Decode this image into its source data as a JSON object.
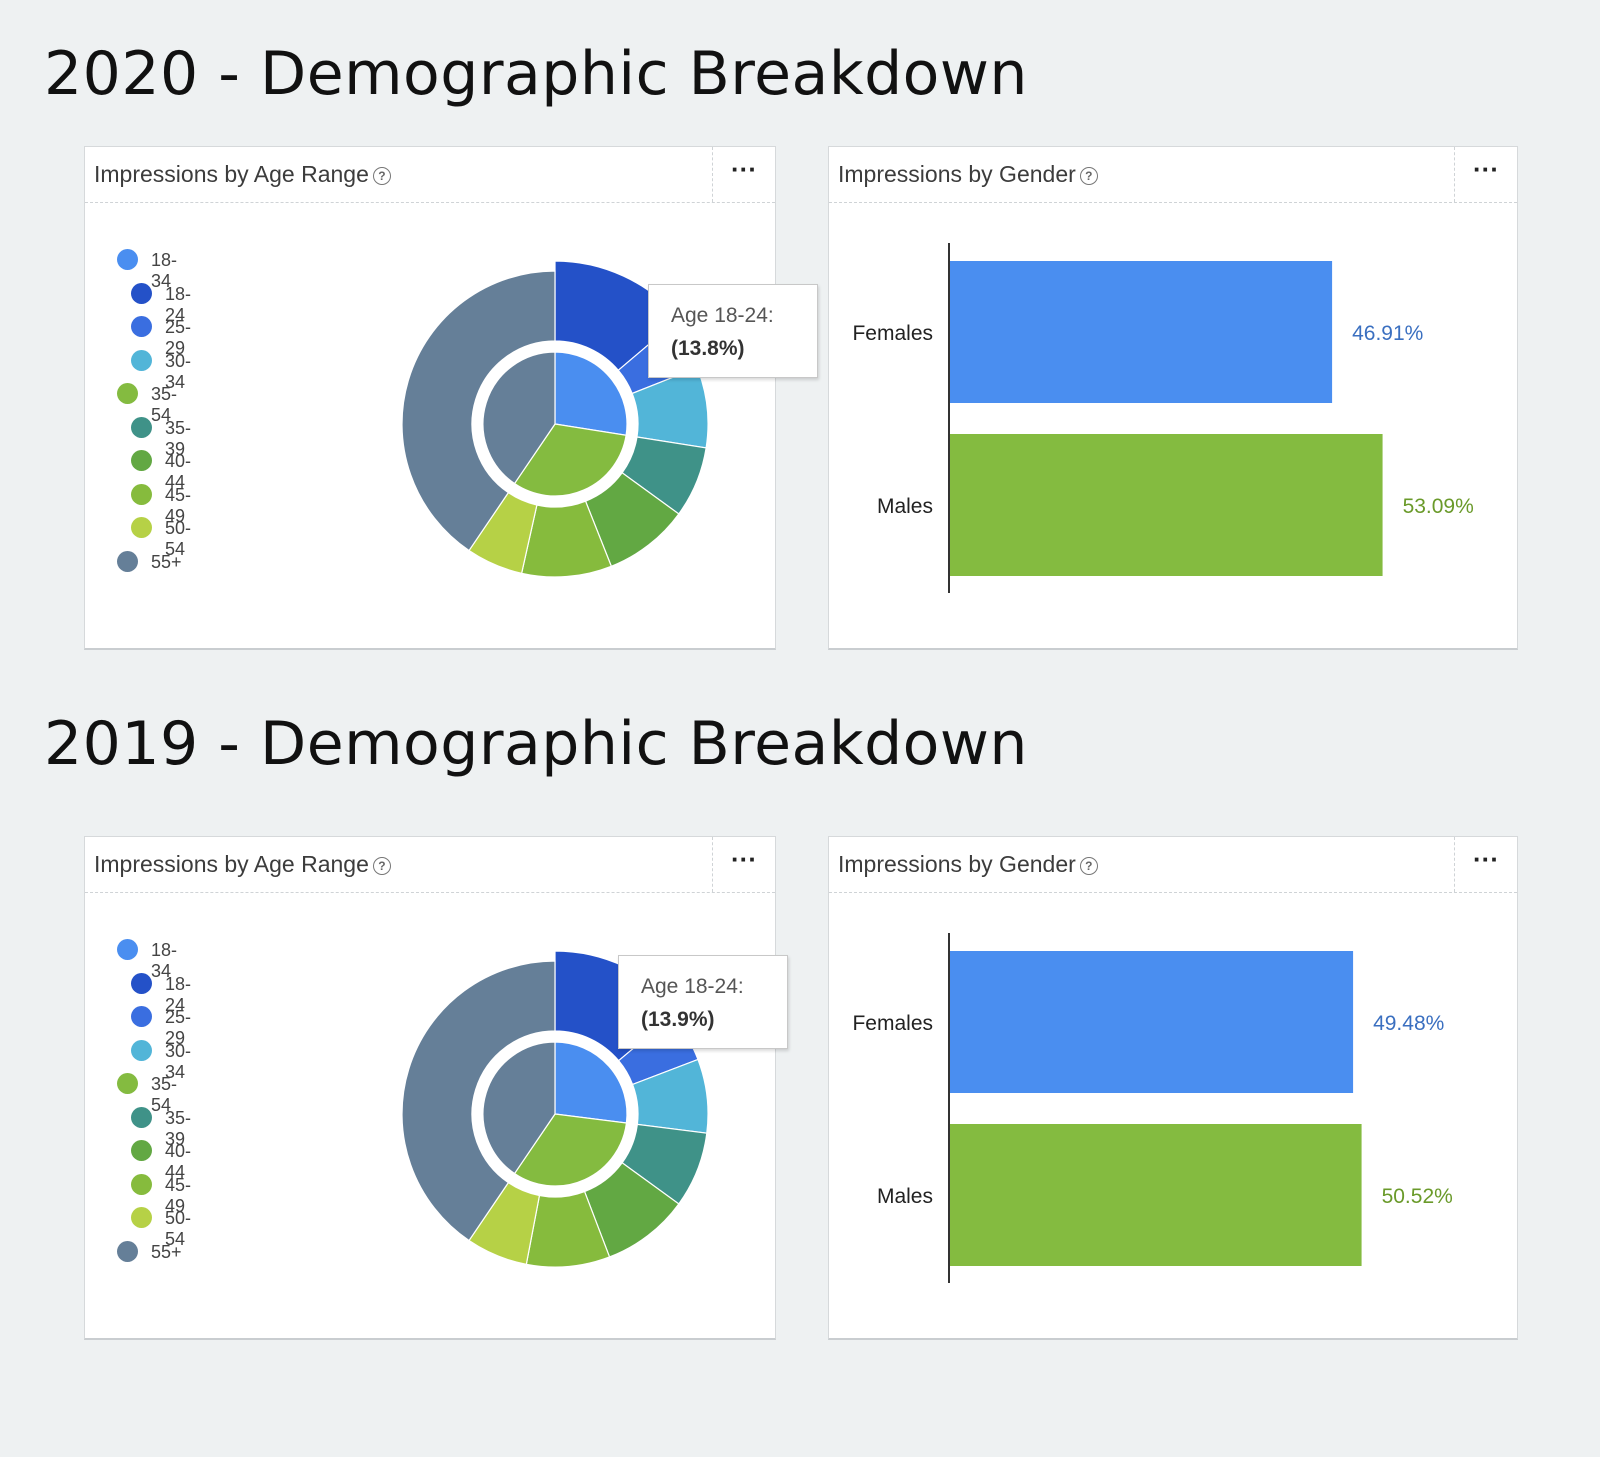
{
  "sections": [
    {
      "title": "2020 - Demographic Breakdown",
      "age_card": {
        "title": "Impressions by Age Range",
        "help_icon": "?",
        "menu_label": "···",
        "tooltip": {
          "label": "Age 18-24:",
          "value": "(13.8%)"
        }
      },
      "gender_card": {
        "title": "Impressions by Gender",
        "help_icon": "?",
        "menu_label": "···"
      }
    },
    {
      "title": "2019 - Demographic Breakdown",
      "age_card": {
        "title": "Impressions by Age Range",
        "help_icon": "?",
        "menu_label": "···",
        "tooltip": {
          "label": "Age 18-24:",
          "value": "(13.9%)"
        }
      },
      "gender_card": {
        "title": "Impressions by Gender",
        "help_icon": "?",
        "menu_label": "···"
      }
    }
  ],
  "legend": [
    {
      "label": "18-34",
      "level": "parent",
      "color": "#4a8ef0"
    },
    {
      "label": "18-24",
      "level": "child",
      "color": "#2451c8"
    },
    {
      "label": "25-29",
      "level": "child",
      "color": "#3a6ee0"
    },
    {
      "label": "30-34",
      "level": "child",
      "color": "#52b5d8"
    },
    {
      "label": "35-54",
      "level": "parent",
      "color": "#84bb40"
    },
    {
      "label": "35-39",
      "level": "child",
      "color": "#3f9288"
    },
    {
      "label": "40-44",
      "level": "child",
      "color": "#62a843"
    },
    {
      "label": "45-49",
      "level": "child",
      "color": "#86bb3d"
    },
    {
      "label": "50-54",
      "level": "child",
      "color": "#b6d146"
    },
    {
      "label": "55+",
      "level": "parent",
      "color": "#657f98"
    }
  ],
  "chart_data": [
    {
      "type": "pie",
      "title": "Impressions by Age Range",
      "variant": "sunburst",
      "inner": [
        {
          "name": "18-34",
          "value": 27.5,
          "color": "#4a8ef0"
        },
        {
          "name": "35-54",
          "value": 32.0,
          "color": "#84bb40"
        },
        {
          "name": "55+",
          "value": 40.5,
          "color": "#657f98"
        }
      ],
      "outer": [
        {
          "name": "18-24",
          "value": 13.8,
          "color": "#2451c8"
        },
        {
          "name": "25-29",
          "value": 5.2,
          "color": "#3a6ee0"
        },
        {
          "name": "30-34",
          "value": 8.5,
          "color": "#52b5d8"
        },
        {
          "name": "35-39",
          "value": 7.5,
          "color": "#3f9288"
        },
        {
          "name": "40-44",
          "value": 9.0,
          "color": "#62a843"
        },
        {
          "name": "45-49",
          "value": 9.5,
          "color": "#86bb3d"
        },
        {
          "name": "50-54",
          "value": 6.0,
          "color": "#b6d146"
        },
        {
          "name": "55+",
          "value": 40.5,
          "color": "#657f98"
        }
      ]
    },
    {
      "type": "bar",
      "orientation": "horizontal",
      "title": "Impressions by Gender",
      "categories": [
        "Females",
        "Males"
      ],
      "values": [
        46.91,
        53.09
      ],
      "value_labels": [
        "46.91%",
        "53.09%"
      ],
      "colors": [
        "#4a8ef0",
        "#84bb40"
      ],
      "label_colors": [
        "#3a6fc0",
        "#6a9a2a"
      ]
    },
    {
      "type": "pie",
      "title": "Impressions by Age Range",
      "variant": "sunburst",
      "inner": [
        {
          "name": "18-34",
          "value": 27.0,
          "color": "#4a8ef0"
        },
        {
          "name": "35-54",
          "value": 32.5,
          "color": "#84bb40"
        },
        {
          "name": "55+",
          "value": 40.5,
          "color": "#657f98"
        }
      ],
      "outer": [
        {
          "name": "18-24",
          "value": 13.9,
          "color": "#2451c8"
        },
        {
          "name": "25-29",
          "value": 5.3,
          "color": "#3a6ee0"
        },
        {
          "name": "30-34",
          "value": 7.8,
          "color": "#52b5d8"
        },
        {
          "name": "35-39",
          "value": 8.0,
          "color": "#3f9288"
        },
        {
          "name": "40-44",
          "value": 9.2,
          "color": "#62a843"
        },
        {
          "name": "45-49",
          "value": 8.8,
          "color": "#86bb3d"
        },
        {
          "name": "50-54",
          "value": 6.5,
          "color": "#b6d146"
        },
        {
          "name": "55+",
          "value": 40.5,
          "color": "#657f98"
        }
      ]
    },
    {
      "type": "bar",
      "orientation": "horizontal",
      "title": "Impressions by Gender",
      "categories": [
        "Females",
        "Males"
      ],
      "values": [
        49.48,
        50.52
      ],
      "value_labels": [
        "49.48%",
        "50.52%"
      ],
      "colors": [
        "#4a8ef0",
        "#84bb40"
      ],
      "label_colors": [
        "#3a6fc0",
        "#6a9a2a"
      ]
    }
  ]
}
